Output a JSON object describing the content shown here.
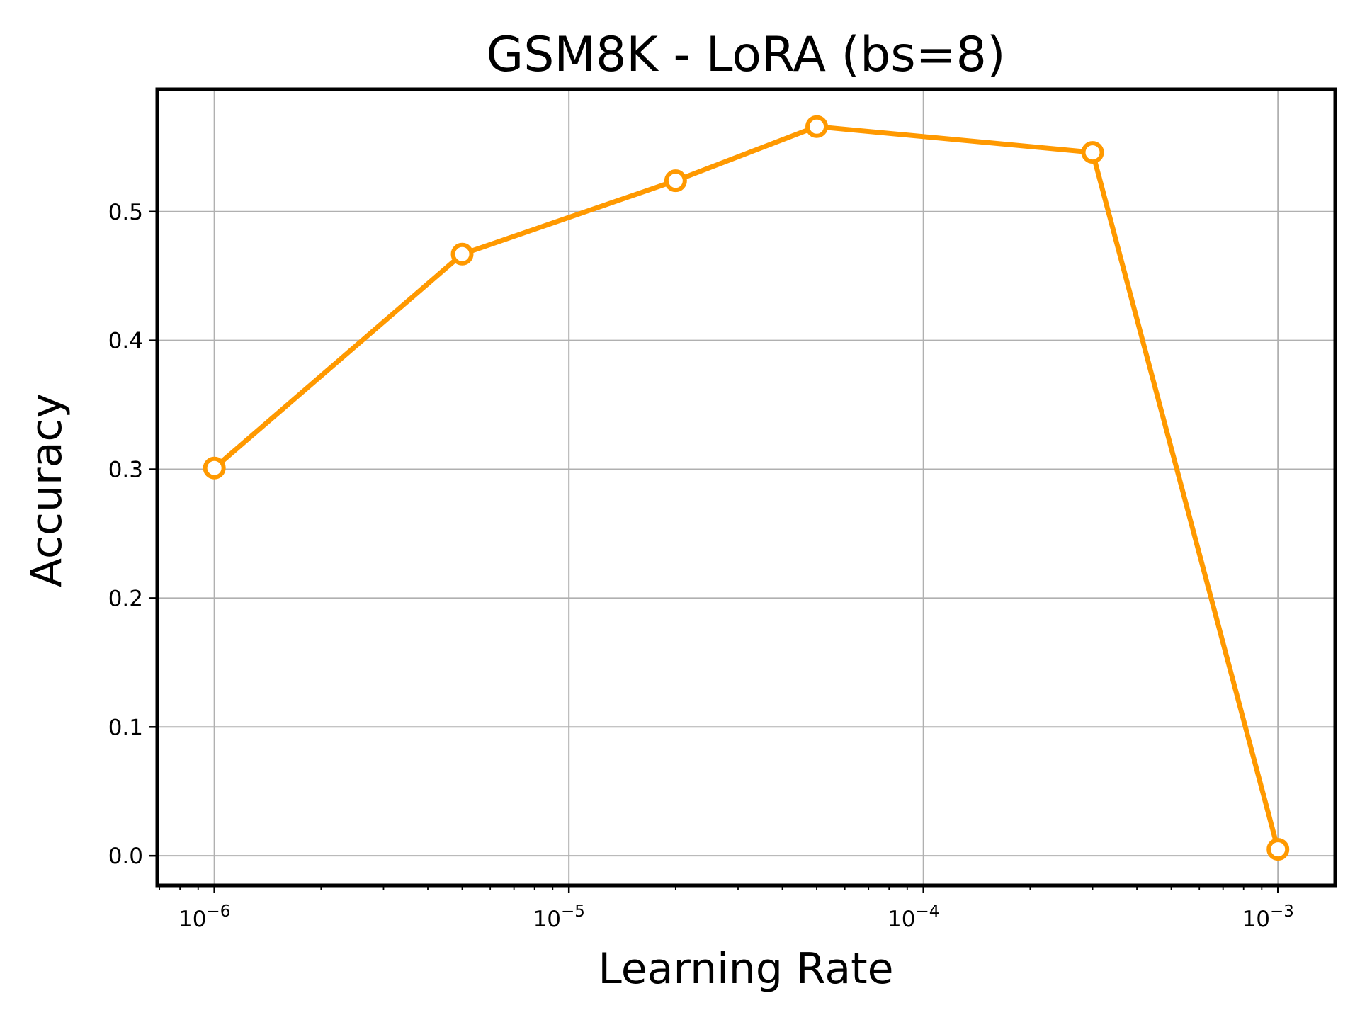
{
  "chart_data": {
    "type": "line",
    "title": "GSM8K - LoRA (bs=8)",
    "xlabel": "Learning Rate",
    "ylabel": "Accuracy",
    "xscale": "log",
    "xlim": [
      6.9e-07,
      0.00145
    ],
    "ylim": [
      -0.023,
      0.595
    ],
    "grid": true,
    "x_ticks": [
      {
        "value": 1e-06,
        "base": "10",
        "exp": "−6"
      },
      {
        "value": 1e-05,
        "base": "10",
        "exp": "−5"
      },
      {
        "value": 0.0001,
        "base": "10",
        "exp": "−4"
      },
      {
        "value": 0.001,
        "base": "10",
        "exp": "−3"
      }
    ],
    "y_ticks": [
      {
        "value": 0.0,
        "label": "0.0"
      },
      {
        "value": 0.1,
        "label": "0.1"
      },
      {
        "value": 0.2,
        "label": "0.2"
      },
      {
        "value": 0.3,
        "label": "0.3"
      },
      {
        "value": 0.4,
        "label": "0.4"
      },
      {
        "value": 0.5,
        "label": "0.5"
      }
    ],
    "series": [
      {
        "color": "#ff9900",
        "marker": "circle-hollow",
        "x": [
          1e-06,
          5e-06,
          2e-05,
          5e-05,
          0.0003,
          0.001
        ],
        "y": [
          0.301,
          0.467,
          0.524,
          0.566,
          0.546,
          0.005
        ]
      }
    ]
  }
}
